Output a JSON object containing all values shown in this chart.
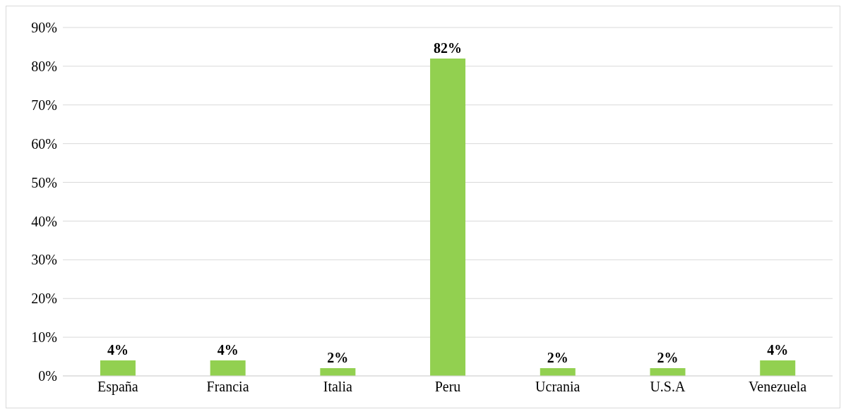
{
  "chart_data": {
    "type": "bar",
    "categories": [
      "España",
      "Francia",
      "Italia",
      "Peru",
      "Ucrania",
      "U.S.A",
      "Venezuela"
    ],
    "values": [
      4,
      4,
      2,
      82,
      2,
      2,
      4
    ],
    "value_labels": [
      "4%",
      "4%",
      "2%",
      "82%",
      "2%",
      "2%",
      "4%"
    ],
    "color": "#92d050",
    "ylim": [
      0,
      90
    ],
    "yticks": [
      {
        "value": 0,
        "label": "0%"
      },
      {
        "value": 10,
        "label": "10%"
      },
      {
        "value": 20,
        "label": "20%"
      },
      {
        "value": 30,
        "label": "30%"
      },
      {
        "value": 40,
        "label": "40%"
      },
      {
        "value": 50,
        "label": "50%"
      },
      {
        "value": 60,
        "label": "60%"
      },
      {
        "value": 70,
        "label": "70%"
      },
      {
        "value": 80,
        "label": "80%"
      },
      {
        "value": 90,
        "label": "90%"
      }
    ],
    "grid": "y"
  }
}
